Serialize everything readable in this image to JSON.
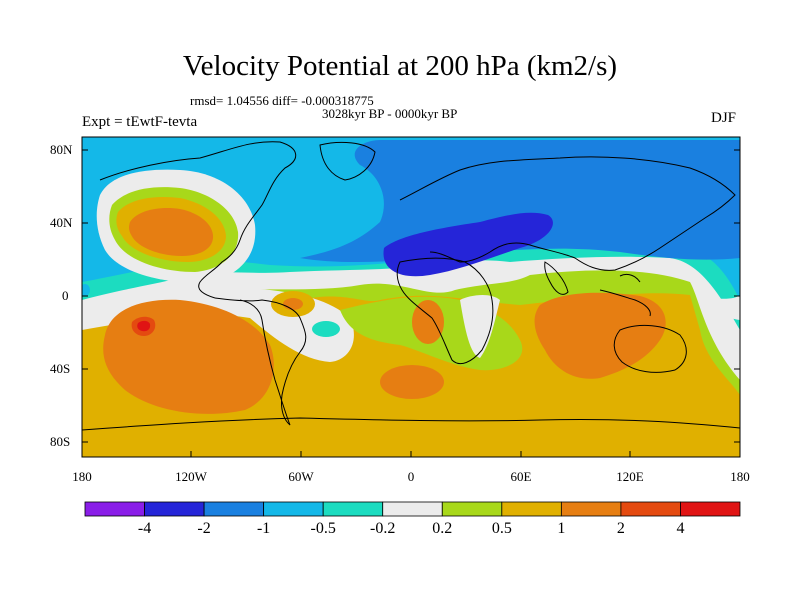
{
  "header": {
    "title": "Velocity Potential at 200 hPa (km2/s)",
    "stats": "rmsd= 1.04556 diff= -0.000318775",
    "subtitle": "3028kyr BP - 0000kyr BP",
    "left_label": "Expt = tEwtF-tevta",
    "right_label": "DJF"
  },
  "map": {
    "lat_ticks": [
      "80N",
      "40N",
      "0",
      "40S",
      "80S"
    ],
    "lon_ticks": [
      "180",
      "120W",
      "60W",
      "0",
      "60E",
      "120E",
      "180"
    ]
  },
  "colorbar": {
    "colors": [
      "#8a1ee8",
      "#2525d8",
      "#1a80e0",
      "#14b8e8",
      "#1cdcc0",
      "#ececec",
      "#a8d81a",
      "#e0b000",
      "#e67e12",
      "#e44a10",
      "#e01414"
    ],
    "labels": [
      "-4",
      "-2",
      "-1",
      "-0.5",
      "-0.2",
      "0.2",
      "0.5",
      "1",
      "2",
      "4"
    ]
  }
}
